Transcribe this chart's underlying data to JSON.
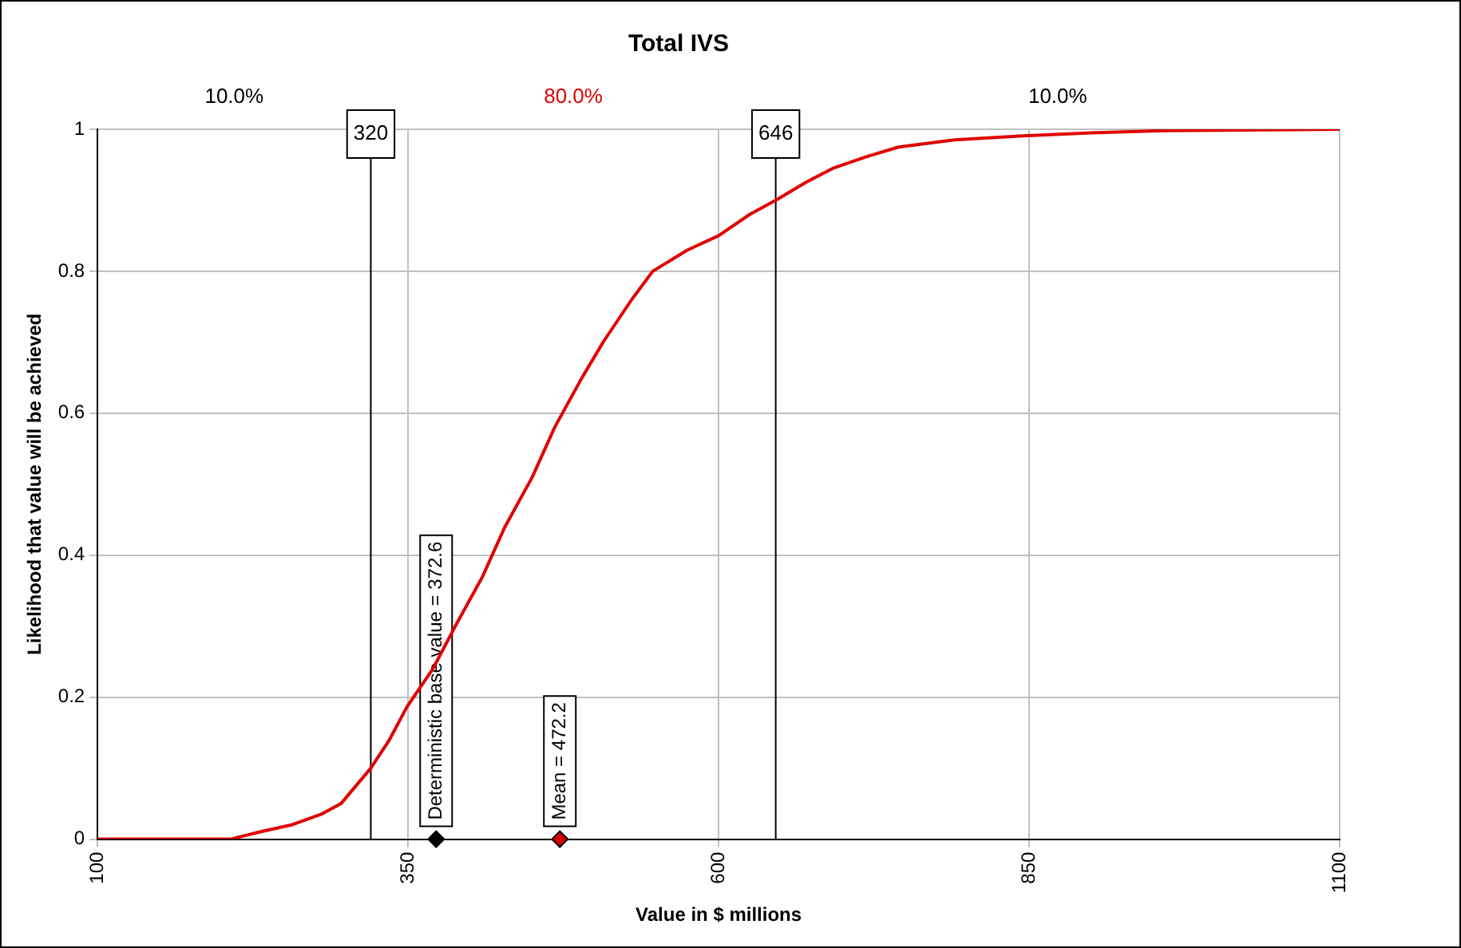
{
  "chart_data": {
    "type": "line",
    "title": "Total IVS",
    "xlabel": "Value in $ millions",
    "ylabel": "Likelihood that value will be achieved",
    "xlim": [
      100,
      1100
    ],
    "xticks": [
      100,
      350,
      600,
      850,
      1100
    ],
    "ylim": [
      0,
      1
    ],
    "yticks": [
      0,
      0.2,
      0.4,
      0.6,
      0.8,
      1
    ],
    "grid": true,
    "legend": false,
    "series": [
      {
        "marker": "none",
        "color": "#e00000",
        "x": [
          100,
          207,
          230,
          256,
          280,
          296,
          320,
          335,
          349,
          370,
          388,
          410,
          428,
          450,
          468,
          490,
          507,
          530,
          547,
          575,
          600,
          625,
          646,
          670,
          692,
          720,
          745,
          790,
          837,
          900,
          957,
          1020,
          1100
        ],
        "values": [
          0,
          0,
          0.01,
          0.02,
          0.035,
          0.05,
          0.1,
          0.14,
          0.186,
          0.24,
          0.3,
          0.37,
          0.44,
          0.51,
          0.58,
          0.65,
          0.7,
          0.76,
          0.8,
          0.83,
          0.85,
          0.88,
          0.9,
          0.925,
          0.945,
          0.962,
          0.975,
          0.985,
          0.99,
          0.995,
          0.998,
          0.999,
          1
        ]
      },
      {
        "type": "scatter",
        "marker": "diamond",
        "color": "#000000",
        "x": [
          372.6
        ],
        "values": [
          0
        ]
      },
      {
        "type": "scatter",
        "marker": "diamond",
        "color": "#d00000",
        "x": [
          472.2
        ],
        "values": [
          0
        ]
      }
    ],
    "ref_lines": [
      {
        "axis": "x",
        "value": 320,
        "label": "320",
        "color": "#000000"
      },
      {
        "axis": "x",
        "value": 646,
        "label": "646",
        "color": "#000000"
      }
    ],
    "annotations": [
      "10.0%",
      "80.0%",
      "10.0%",
      {
        "text": "Deterministic base value = 372.6",
        "x": 372.6,
        "y": 0
      },
      {
        "text": "Mean = 472.2",
        "x": 472.2,
        "y": 0
      }
    ]
  }
}
